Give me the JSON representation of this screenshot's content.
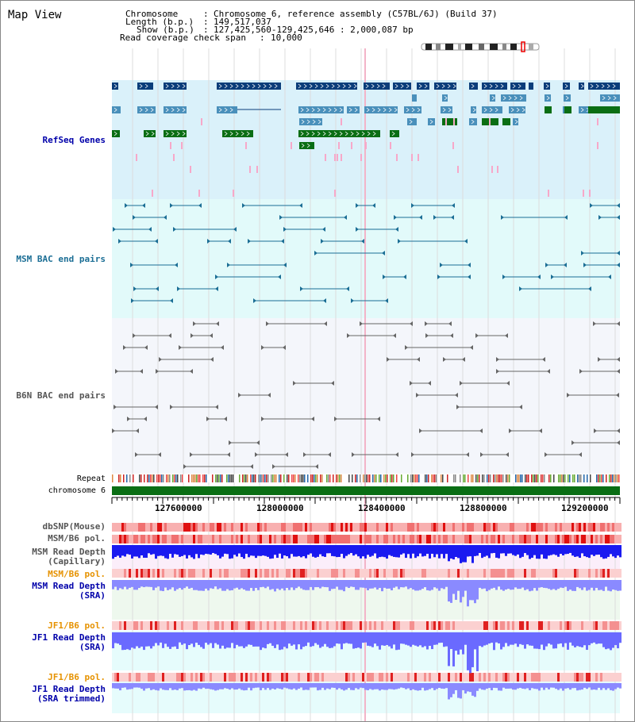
{
  "page": {
    "title": "Map View"
  },
  "info": {
    "chromosome_key": "Chromosome",
    "chromosome_val": "Chromosome 6, reference assembly (C57BL/6J) (Build 37)",
    "length_key": "Length (b.p.)",
    "length_val": "149,517,037",
    "show_key": "Show (b.p.)",
    "show_val": "127,425,560-129,425,646 : 2,000,087 bp",
    "read_cov_key": "Read coverage check span",
    "read_cov_val": "10,000"
  },
  "tracks": {
    "refseq": "RefSeq Genes",
    "msm_bac": "MSM BAC end pairs",
    "b6n_bac": "B6N BAC end pairs",
    "repeat": "Repeat",
    "chromosome": "chromosome 6",
    "dbsnp": "dbSNP(Mouse)",
    "msm_b6_pol_1": "MSM/B6 pol.",
    "msm_depth_cap_1": "MSM Read Depth",
    "msm_depth_cap_2": "(Capillary)",
    "msm_b6_pol_2": "MSM/B6 pol.",
    "msm_depth_sra_1": "MSM Read Depth",
    "msm_depth_sra_2": "(SRA)",
    "jf1_b6_pol_1": "JF1/B6 pol.",
    "jf1_depth_sra_1": "JF1 Read Depth",
    "jf1_depth_sra_2": "(SRA)",
    "jf1_b6_pol_2": "JF1/B6 pol.",
    "jf1_depth_trim_1": "JF1 Read Depth",
    "jf1_depth_trim_2": "(SRA trimmed)"
  },
  "axis": {
    "ticks": [
      "127600000",
      "128000000",
      "128400000",
      "128800000",
      "129200000"
    ]
  },
  "colors": {
    "refseq_bg": "#daf1fa",
    "msm_bg": "#e2fafa",
    "b6n_bg": "#f4f6fb",
    "gene_dark": "#0b3d7a",
    "gene_mid": "#4a90bb",
    "gene_green": "#0a6e14",
    "bac_msm": "#1b6e95",
    "bac_b6n": "#666666",
    "depth_blue": "#1010ee",
    "depth_light": "#7b7bff",
    "label_blue": "#0000aa",
    "label_orange": "#e69200"
  }
}
